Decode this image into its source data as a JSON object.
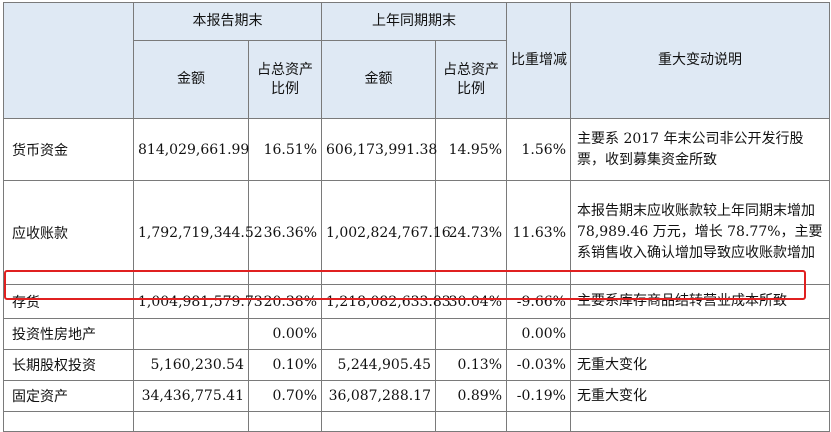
{
  "header": {
    "current_period": "本报告期末",
    "prior_period": "上年同期期末",
    "ratio_change": "比重增减",
    "explanation": "重大变动说明",
    "amount": "金额",
    "pct_total_assets": "占总资产比例"
  },
  "rows": [
    {
      "item": "货币资金",
      "cur_amount": "814,029,661.99",
      "cur_pct": "16.51%",
      "prev_amount": "606,173,991.38",
      "prev_pct": "14.95%",
      "change": "1.56%",
      "note": "主要系 2017 年末公司非公开发行股票，收到募集资金所致"
    },
    {
      "item": "应收账款",
      "cur_amount": "1,792,719,344.52",
      "cur_pct": "36.36%",
      "prev_amount": "1,002,824,767.16",
      "prev_pct": "24.73%",
      "change": "11.63%",
      "note": "本报告期末应收账款较上年同期末增加 78,989.46 万元，增长 78.77%，主要系销售收入确认增加导致应收账款增加"
    },
    {
      "item": "存货",
      "cur_amount": "1,004,981,579.73",
      "cur_pct": "20.38%",
      "prev_amount": "1,218,082,633.83",
      "prev_pct": "30.04%",
      "change": "-9.66%",
      "note": "主要系库存商品结转营业成本所致"
    },
    {
      "item": "投资性房地产",
      "cur_amount": "",
      "cur_pct": "0.00%",
      "prev_amount": "",
      "prev_pct": "",
      "change": "0.00%",
      "note": ""
    },
    {
      "item": "长期股权投资",
      "cur_amount": "5,160,230.54",
      "cur_pct": "0.10%",
      "prev_amount": "5,244,905.45",
      "prev_pct": "0.13%",
      "change": "-0.03%",
      "note": "无重大变化"
    },
    {
      "item": "固定资产",
      "cur_amount": "34,436,775.41",
      "cur_pct": "0.70%",
      "prev_amount": "36,087,288.17",
      "prev_pct": "0.89%",
      "change": "-0.19%",
      "note": "无重大变化"
    }
  ],
  "highlight": {
    "color": "#e02020",
    "row": "存货"
  }
}
